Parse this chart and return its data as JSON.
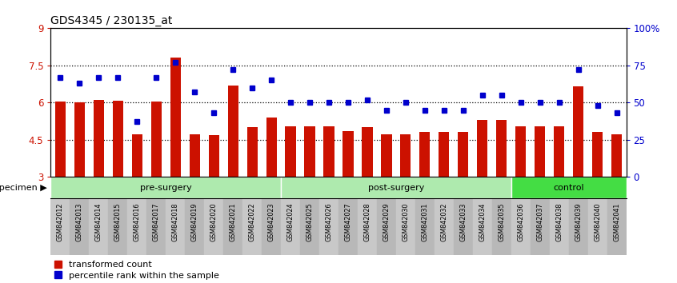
{
  "title": "GDS4345 / 230135_at",
  "samples": [
    "GSM842012",
    "GSM842013",
    "GSM842014",
    "GSM842015",
    "GSM842016",
    "GSM842017",
    "GSM842018",
    "GSM842019",
    "GSM842020",
    "GSM842021",
    "GSM842022",
    "GSM842023",
    "GSM842024",
    "GSM842025",
    "GSM842026",
    "GSM842027",
    "GSM842028",
    "GSM842029",
    "GSM842030",
    "GSM842031",
    "GSM842032",
    "GSM842033",
    "GSM842034",
    "GSM842035",
    "GSM842036",
    "GSM842037",
    "GSM842038",
    "GSM842039",
    "GSM842040",
    "GSM842041"
  ],
  "bar_values": [
    6.05,
    6.0,
    6.1,
    6.07,
    4.72,
    6.05,
    7.82,
    4.72,
    4.68,
    6.7,
    5.0,
    5.4,
    5.05,
    5.05,
    5.05,
    4.85,
    5.02,
    4.72,
    4.72,
    4.82,
    4.82,
    4.82,
    5.3,
    5.3,
    5.05,
    5.05,
    5.05,
    6.65,
    4.82,
    4.72
  ],
  "dot_values": [
    67,
    63,
    67,
    67,
    37,
    67,
    77,
    57,
    43,
    72,
    60,
    65,
    50,
    50,
    50,
    50,
    52,
    45,
    50,
    45,
    45,
    45,
    55,
    55,
    50,
    50,
    50,
    72,
    48,
    43
  ],
  "bar_color": "#cc1100",
  "dot_color": "#0000cc",
  "ylim_left": [
    3,
    9
  ],
  "ylim_right": [
    0,
    100
  ],
  "yticks_left": [
    3,
    4.5,
    6.0,
    7.5,
    9
  ],
  "ytick_labels_left": [
    "3",
    "4.5",
    "6",
    "7.5",
    "9"
  ],
  "yticks_right": [
    0,
    25,
    50,
    75,
    100
  ],
  "ytick_labels_right": [
    "0",
    "25",
    "50",
    "75",
    "100%"
  ],
  "hlines": [
    4.5,
    6.0,
    7.5
  ],
  "groups": [
    {
      "label": "pre-surgery",
      "start": 0,
      "end": 11,
      "color": "#aeeaae"
    },
    {
      "label": "post-surgery",
      "start": 12,
      "end": 23,
      "color": "#aeeaae"
    },
    {
      "label": "control",
      "start": 24,
      "end": 29,
      "color": "#44dd44"
    }
  ],
  "legend_items": [
    {
      "label": "transformed count",
      "color": "#cc1100"
    },
    {
      "label": "percentile rank within the sample",
      "color": "#0000cc"
    }
  ],
  "specimen_label": "specimen",
  "bar_width": 0.55,
  "tick_bg_color": "#c8c8c8",
  "plot_bg_color": "#ffffff"
}
